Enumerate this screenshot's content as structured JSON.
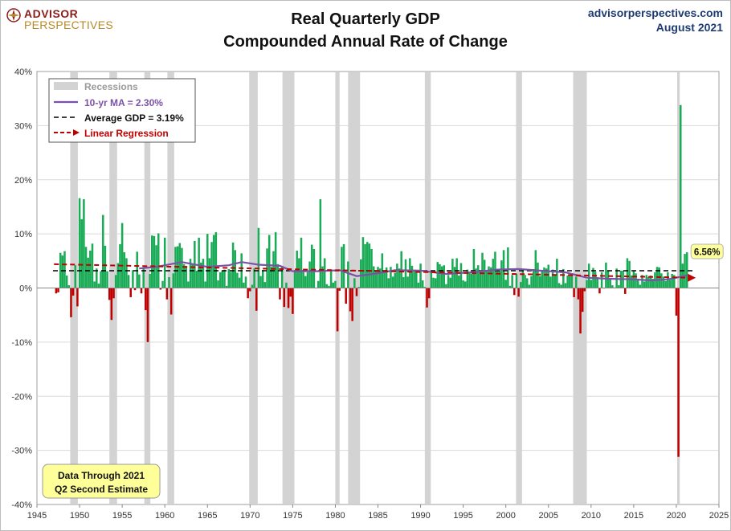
{
  "header": {
    "logo_line1": "ADVISOR",
    "logo_line2": "PERSPECTIVES",
    "title_line1": "Real Quarterly GDP",
    "title_line2": "Compounded Annual Rate of Change",
    "site": "advisorperspectives.com",
    "date": "August 2021"
  },
  "colors": {
    "positive": "#1aab56",
    "negative": "#c00000",
    "recession": "#d3d3d3",
    "ma_line": "#7b52a8",
    "average_line": "#000000",
    "regression": "#c00000",
    "callout_fill": "#ffff99",
    "note_fill": "#ffff99"
  },
  "chart_data": {
    "type": "bar",
    "xlim": [
      1945,
      2025
    ],
    "ylim": [
      -40,
      40
    ],
    "x_ticks": [
      1945,
      1950,
      1955,
      1960,
      1965,
      1970,
      1975,
      1980,
      1985,
      1990,
      1995,
      2000,
      2005,
      2010,
      2015,
      2020,
      2025
    ],
    "y_ticks": [
      -40,
      -30,
      -20,
      -10,
      0,
      10,
      20,
      30,
      40
    ],
    "y_tick_suffix": "%",
    "grid": "horizontal",
    "recessions": [
      [
        1948.9,
        1949.8
      ],
      [
        1953.5,
        1954.4
      ],
      [
        1957.6,
        1958.3
      ],
      [
        1960.3,
        1961.1
      ],
      [
        1969.9,
        1970.9
      ],
      [
        1973.8,
        1975.2
      ],
      [
        1980.0,
        1980.5
      ],
      [
        1981.5,
        1982.9
      ],
      [
        1990.5,
        1991.2
      ],
      [
        2001.2,
        2001.9
      ],
      [
        2007.9,
        2009.5
      ],
      [
        2020.1,
        2020.4
      ]
    ],
    "gdp_x": [
      1947.25,
      1947.5,
      1947.75,
      1948.0,
      1948.25,
      1948.5,
      1948.75,
      1949.0,
      1949.25,
      1949.5,
      1949.75,
      1950.0,
      1950.25,
      1950.5,
      1950.75,
      1951.0,
      1951.25,
      1951.5,
      1951.75,
      1952.0,
      1952.25,
      1952.5,
      1952.75,
      1953.0,
      1953.25,
      1953.5,
      1953.75,
      1954.0,
      1954.25,
      1954.5,
      1954.75,
      1955.0,
      1955.25,
      1955.5,
      1955.75,
      1956.0,
      1956.25,
      1956.5,
      1956.75,
      1957.0,
      1957.25,
      1957.5,
      1957.75,
      1958.0,
      1958.25,
      1958.5,
      1958.75,
      1959.0,
      1959.25,
      1959.5,
      1959.75,
      1960.0,
      1960.25,
      1960.5,
      1960.75,
      1961.0,
      1961.25,
      1961.5,
      1961.75,
      1962.0,
      1962.25,
      1962.5,
      1962.75,
      1963.0,
      1963.25,
      1963.5,
      1963.75,
      1964.0,
      1964.25,
      1964.5,
      1964.75,
      1965.0,
      1965.25,
      1965.5,
      1965.75,
      1966.0,
      1966.25,
      1966.5,
      1966.75,
      1967.0,
      1967.25,
      1967.5,
      1967.75,
      1968.0,
      1968.25,
      1968.5,
      1968.75,
      1969.0,
      1969.25,
      1969.5,
      1969.75,
      1970.0,
      1970.25,
      1970.5,
      1970.75,
      1971.0,
      1971.25,
      1971.5,
      1971.75,
      1972.0,
      1972.25,
      1972.5,
      1972.75,
      1973.0,
      1973.25,
      1973.5,
      1973.75,
      1974.0,
      1974.25,
      1974.5,
      1974.75,
      1975.0,
      1975.25,
      1975.5,
      1975.75,
      1976.0,
      1976.25,
      1976.5,
      1976.75,
      1977.0,
      1977.25,
      1977.5,
      1977.75,
      1978.0,
      1978.25,
      1978.5,
      1978.75,
      1979.0,
      1979.25,
      1979.5,
      1979.75,
      1980.0,
      1980.25,
      1980.5,
      1980.75,
      1981.0,
      1981.25,
      1981.5,
      1981.75,
      1982.0,
      1982.25,
      1982.5,
      1982.75,
      1983.0,
      1983.25,
      1983.5,
      1983.75,
      1984.0,
      1984.25,
      1984.5,
      1984.75,
      1985.0,
      1985.25,
      1985.5,
      1985.75,
      1986.0,
      1986.25,
      1986.5,
      1986.75,
      1987.0,
      1987.25,
      1987.5,
      1987.75,
      1988.0,
      1988.25,
      1988.5,
      1988.75,
      1989.0,
      1989.25,
      1989.5,
      1989.75,
      1990.0,
      1990.25,
      1990.5,
      1990.75,
      1991.0,
      1991.25,
      1991.5,
      1991.75,
      1992.0,
      1992.25,
      1992.5,
      1992.75,
      1993.0,
      1993.25,
      1993.5,
      1993.75,
      1994.0,
      1994.25,
      1994.5,
      1994.75,
      1995.0,
      1995.25,
      1995.5,
      1995.75,
      1996.0,
      1996.25,
      1996.5,
      1996.75,
      1997.0,
      1997.25,
      1997.5,
      1997.75,
      1998.0,
      1998.25,
      1998.5,
      1998.75,
      1999.0,
      1999.25,
      1999.5,
      1999.75,
      2000.0,
      2000.25,
      2000.5,
      2000.75,
      2001.0,
      2001.25,
      2001.5,
      2001.75,
      2002.0,
      2002.25,
      2002.5,
      2002.75,
      2003.0,
      2003.25,
      2003.5,
      2003.75,
      2004.0,
      2004.25,
      2004.5,
      2004.75,
      2005.0,
      2005.25,
      2005.5,
      2005.75,
      2006.0,
      2006.25,
      2006.5,
      2006.75,
      2007.0,
      2007.25,
      2007.5,
      2007.75,
      2008.0,
      2008.25,
      2008.5,
      2008.75,
      2009.0,
      2009.25,
      2009.5,
      2009.75,
      2010.0,
      2010.25,
      2010.5,
      2010.75,
      2011.0,
      2011.25,
      2011.5,
      2011.75,
      2012.0,
      2012.25,
      2012.5,
      2012.75,
      2013.0,
      2013.25,
      2013.5,
      2013.75,
      2014.0,
      2014.25,
      2014.5,
      2014.75,
      2015.0,
      2015.25,
      2015.5,
      2015.75,
      2016.0,
      2016.25,
      2016.5,
      2016.75,
      2017.0,
      2017.25,
      2017.5,
      2017.75,
      2018.0,
      2018.25,
      2018.5,
      2018.75,
      2019.0,
      2019.25,
      2019.5,
      2019.75,
      2020.0,
      2020.25,
      2020.5,
      2020.75,
      2021.0,
      2021.25
    ],
    "gdp_values": [
      -1.0,
      -0.8,
      6.5,
      6.0,
      6.8,
      2.3,
      0.5,
      -5.4,
      -1.4,
      4.2,
      -3.4,
      16.6,
      12.7,
      16.4,
      7.6,
      5.6,
      6.9,
      8.2,
      1.2,
      3.6,
      0.8,
      3.1,
      13.5,
      7.8,
      3.1,
      -2.2,
      -5.9,
      -1.9,
      2.4,
      4.6,
      8.1,
      12.0,
      6.6,
      5.5,
      2.4,
      -1.7,
      3.3,
      -0.4,
      6.7,
      2.5,
      -1.0,
      3.8,
      -4.1,
      -10.0,
      2.6,
      9.7,
      9.6,
      7.9,
      10.1,
      -0.3,
      1.3,
      9.3,
      -2.1,
      2.0,
      -4.9,
      2.7,
      7.6,
      7.7,
      8.3,
      7.4,
      4.4,
      4.1,
      1.2,
      5.4,
      4.3,
      8.7,
      3.2,
      9.3,
      4.7,
      5.4,
      1.2,
      10.0,
      5.5,
      8.5,
      9.8,
      10.3,
      1.4,
      2.9,
      3.2,
      3.4,
      0.4,
      3.5,
      3.0,
      8.4,
      7.0,
      2.8,
      1.9,
      6.4,
      1.0,
      2.1,
      -1.9,
      -0.6,
      0.6,
      3.6,
      -4.2,
      11.1,
      2.2,
      3.3,
      1.1,
      7.3,
      9.8,
      3.9,
      6.8,
      10.3,
      4.4,
      -2.1,
      3.9,
      -3.5,
      1.0,
      -3.7,
      -1.6,
      -4.8,
      3.0,
      6.9,
      5.5,
      9.3,
      3.0,
      2.2,
      2.9,
      4.9,
      8.0,
      7.2,
      0.0,
      1.3,
      16.4,
      4.0,
      5.5,
      0.7,
      0.4,
      3.1,
      1.0,
      1.3,
      -8.0,
      -0.5,
      7.6,
      8.1,
      -2.9,
      4.9,
      -4.3,
      -6.1,
      1.8,
      -1.5,
      0.2,
      5.3,
      9.4,
      8.1,
      8.5,
      8.2,
      7.2,
      4.0,
      3.3,
      3.9,
      3.6,
      6.4,
      3.0,
      3.8,
      1.8,
      3.9,
      2.1,
      2.8,
      4.5,
      3.6,
      6.8,
      2.0,
      5.3,
      2.1,
      5.5,
      4.1,
      3.1,
      2.9,
      1.0,
      4.5,
      1.4,
      0.2,
      -3.6,
      -1.9,
      3.1,
      1.9,
      1.8,
      4.8,
      4.4,
      4.0,
      4.2,
      0.7,
      2.4,
      1.9,
      5.4,
      3.9,
      5.5,
      2.3,
      4.6,
      1.4,
      1.2,
      3.4,
      2.8,
      2.6,
      7.2,
      3.6,
      4.2,
      3.1,
      6.5,
      5.2,
      3.1,
      4.0,
      3.8,
      5.4,
      6.7,
      3.5,
      3.2,
      5.1,
      7.0,
      1.5,
      7.5,
      0.4,
      2.4,
      -1.3,
      2.6,
      -1.6,
      1.1,
      3.5,
      2.4,
      1.8,
      0.6,
      2.2,
      3.5,
      7.0,
      4.7,
      2.2,
      3.1,
      3.8,
      3.6,
      4.3,
      2.1,
      3.4,
      2.3,
      5.4,
      0.9,
      0.6,
      3.5,
      0.9,
      2.3,
      2.2,
      2.5,
      -1.7,
      2.1,
      -2.1,
      -8.4,
      -4.4,
      -0.6,
      1.5,
      4.5,
      1.5,
      3.7,
      3.0,
      2.0,
      -1.0,
      2.9,
      -0.1,
      4.7,
      3.2,
      1.7,
      0.5,
      0.1,
      3.6,
      0.5,
      3.2,
      3.2,
      -1.1,
      5.5,
      5.0,
      2.3,
      3.2,
      2.7,
      1.6,
      0.6,
      2.4,
      1.2,
      2.4,
      2.0,
      2.3,
      1.7,
      2.9,
      3.9,
      3.8,
      2.7,
      2.1,
      1.3,
      2.9,
      1.5,
      2.6,
      2.4,
      -5.1,
      -31.2,
      33.8,
      4.5,
      6.3,
      6.6
    ],
    "ma_x": [
      1957.0,
      1959.0,
      1962.0,
      1965.0,
      1967.5,
      1969.0,
      1971.0,
      1973.5,
      1975.0,
      1978.0,
      1980.5,
      1982.5,
      1984.5,
      1987.0,
      1990.0,
      1993.0,
      1996.0,
      1999.0,
      2001.5,
      2004.0,
      2007.0,
      2009.5,
      2012.0,
      2015.0,
      2017.0,
      2019.0,
      2021.25
    ],
    "ma_values": [
      3.6,
      3.9,
      4.8,
      3.9,
      4.2,
      4.8,
      4.3,
      4.1,
      3.1,
      3.1,
      3.3,
      2.2,
      2.6,
      3.3,
      3.2,
      2.6,
      2.9,
      3.4,
      3.5,
      3.2,
      2.9,
      1.9,
      1.7,
      1.6,
      1.4,
      1.6,
      2.3
    ],
    "ma_label": "10-yr MA = 2.30%",
    "average": 3.19,
    "average_label": "Average GDP = 3.19%",
    "regression": {
      "x": [
        1947.0,
        2022.0
      ],
      "y": [
        4.4,
        1.9
      ]
    },
    "regression_label": "Linear Regression",
    "recessions_label": "Recessions",
    "last_value_label": "6.56%",
    "note_line1": "Data Through 2021",
    "note_line2": "Q2 Second Estimate"
  }
}
